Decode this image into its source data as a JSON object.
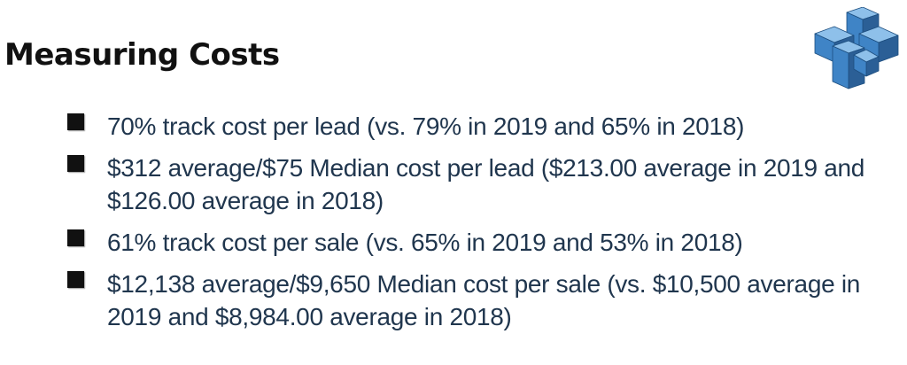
{
  "slide": {
    "title": "Measuring Costs",
    "logo_icon": "interlocking-cubes-logo-icon",
    "accent_color": "#2f6fae",
    "text_color": "#20364e",
    "bullets": [
      {
        "text": "70% track cost per lead (vs. 79% in 2019 and 65% in 2018)"
      },
      {
        "text": "$312 average/$75 Median cost per lead ($213.00 average in 2019 and $126.00 average in 2018)"
      },
      {
        "text": "61% track cost per sale (vs. 65% in 2019 and 53% in 2018)"
      },
      {
        "text": "$12,138 average/$9,650 Median cost per sale (vs. $10,500 average in 2019 and $8,984.00 average in 2018)"
      }
    ]
  }
}
